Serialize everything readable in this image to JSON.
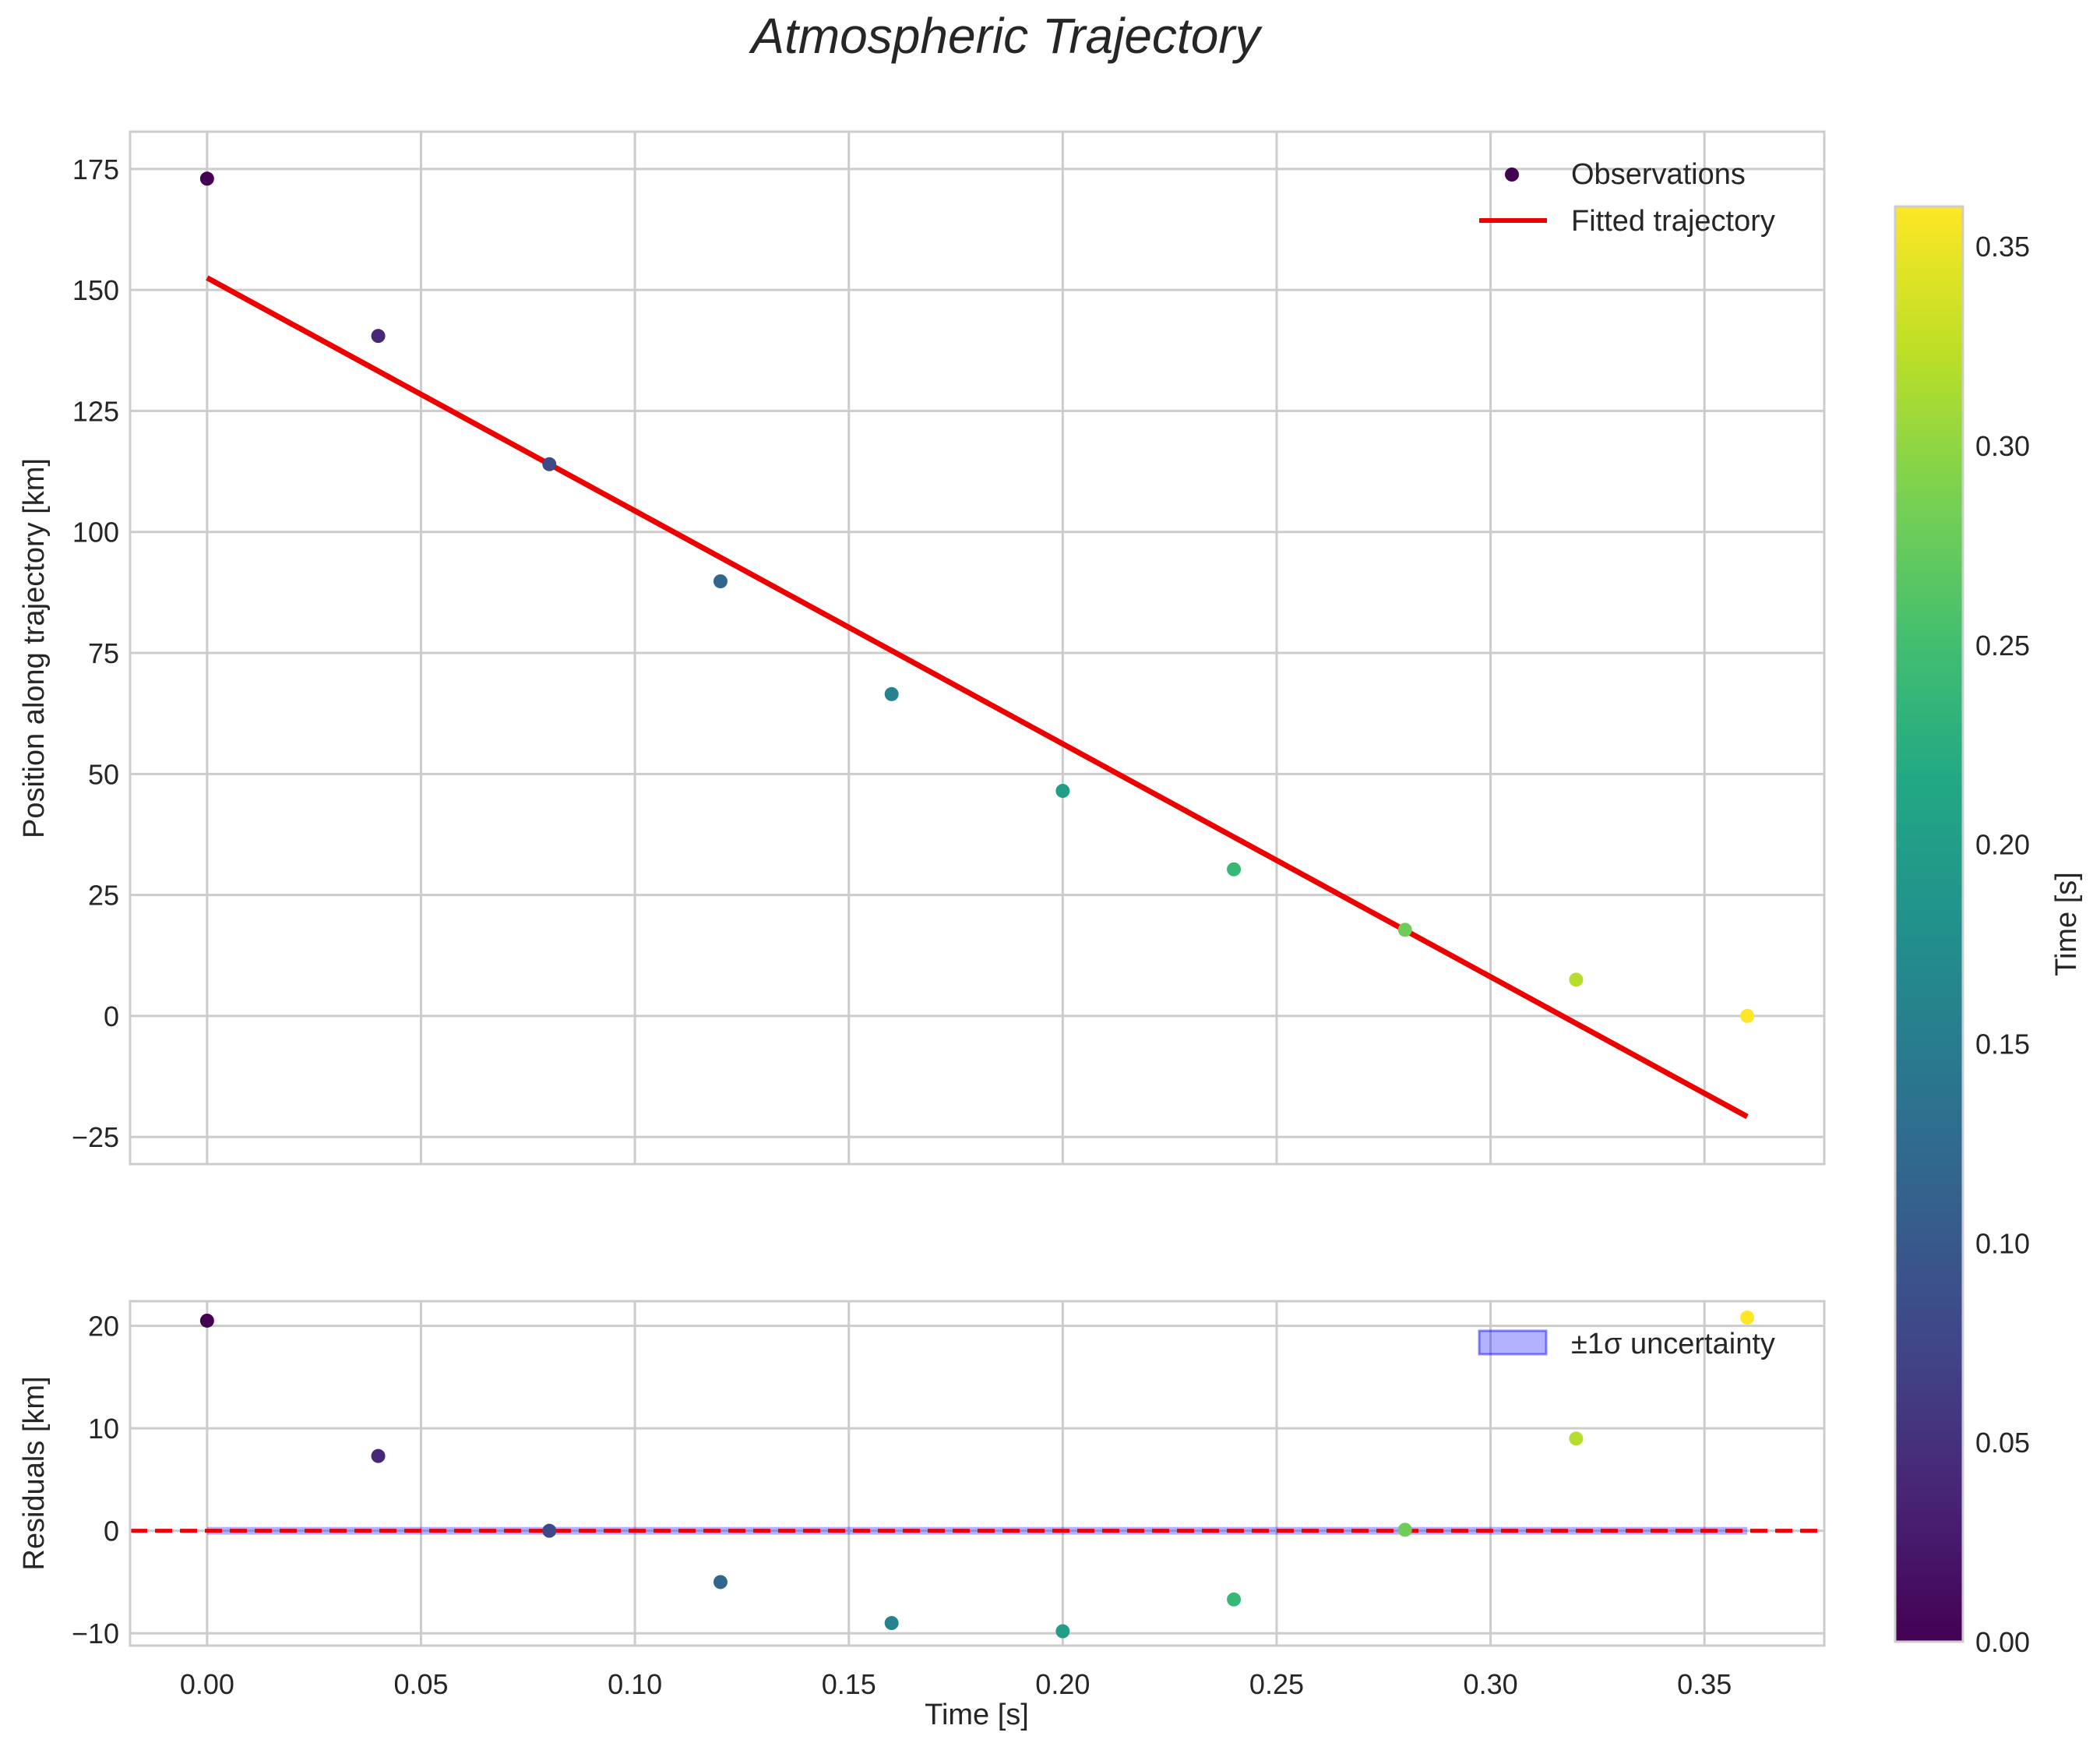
{
  "chart_data": [
    {
      "type": "scatter",
      "panel": "top",
      "title": "Atmospheric Trajectory",
      "xlabel": "",
      "ylabel": "Position along trajectory [km]",
      "xlim": [
        -0.018,
        0.378
      ],
      "ylim": [
        -30.6,
        182.7
      ],
      "xticks": [
        0.0,
        0.05,
        0.1,
        0.15,
        0.2,
        0.25,
        0.3,
        0.35
      ],
      "xtick_labels": [
        "",
        "",
        "",
        "",
        "",
        "",
        "",
        ""
      ],
      "yticks": [
        -25,
        0,
        25,
        50,
        75,
        100,
        125,
        150,
        175
      ],
      "ytick_labels": [
        "−25",
        "0",
        "25",
        "50",
        "75",
        "100",
        "125",
        "150",
        "175"
      ],
      "grid": true,
      "legend": {
        "position": "top-right",
        "entries": [
          "Observations",
          "Fitted trajectory"
        ]
      },
      "series": [
        {
          "name": "Observations",
          "kind": "scatter",
          "colormap": "viridis",
          "x": [
            0.0,
            0.04,
            0.08,
            0.12,
            0.16,
            0.2,
            0.24,
            0.28,
            0.32,
            0.36
          ],
          "y": [
            173.0,
            140.5,
            114.0,
            89.8,
            66.5,
            46.5,
            30.3,
            17.8,
            7.5,
            0.0
          ]
        },
        {
          "name": "Fitted trajectory",
          "kind": "line",
          "color": "#ee0000",
          "x": [
            0.0,
            0.36
          ],
          "y": [
            152.5,
            -20.8
          ]
        }
      ]
    },
    {
      "type": "scatter",
      "panel": "bottom",
      "xlabel": "Time [s]",
      "ylabel": "Residuals [km]",
      "xlim": [
        -0.018,
        0.378
      ],
      "ylim": [
        -11.2,
        22.4
      ],
      "xticks": [
        0.0,
        0.05,
        0.1,
        0.15,
        0.2,
        0.25,
        0.3,
        0.35
      ],
      "xtick_labels": [
        "0.00",
        "0.05",
        "0.10",
        "0.15",
        "0.20",
        "0.25",
        "0.30",
        "0.35"
      ],
      "yticks": [
        -10,
        0,
        10,
        20
      ],
      "ytick_labels": [
        "−10",
        "0",
        "10",
        "20"
      ],
      "grid": true,
      "legend": {
        "position": "top-right",
        "entries": [
          "±1σ uncertainty"
        ]
      },
      "zero_line": {
        "y": 0,
        "style": "dashed",
        "color": "#ee0000"
      },
      "uncertainty_band": {
        "x": [
          0.0,
          0.36
        ],
        "low": -0.15,
        "high": 0.15,
        "color": "#0000ff",
        "alpha": 0.3
      },
      "series": [
        {
          "name": "Residuals",
          "kind": "scatter",
          "colormap": "viridis",
          "x": [
            0.0,
            0.04,
            0.08,
            0.12,
            0.16,
            0.2,
            0.24,
            0.28,
            0.32,
            0.36
          ],
          "y": [
            20.5,
            7.3,
            0.0,
            -5.0,
            -9.0,
            -9.8,
            -6.7,
            0.1,
            9.0,
            20.8
          ]
        }
      ]
    }
  ],
  "colorbar": {
    "label": "Time [s]",
    "range": [
      0.0,
      0.36
    ],
    "ticks": [
      0.0,
      0.05,
      0.1,
      0.15,
      0.2,
      0.25,
      0.3,
      0.35
    ],
    "tick_labels": [
      "0.00",
      "0.05",
      "0.10",
      "0.15",
      "0.20",
      "0.25",
      "0.30",
      "0.35"
    ],
    "colormap": "viridis"
  }
}
